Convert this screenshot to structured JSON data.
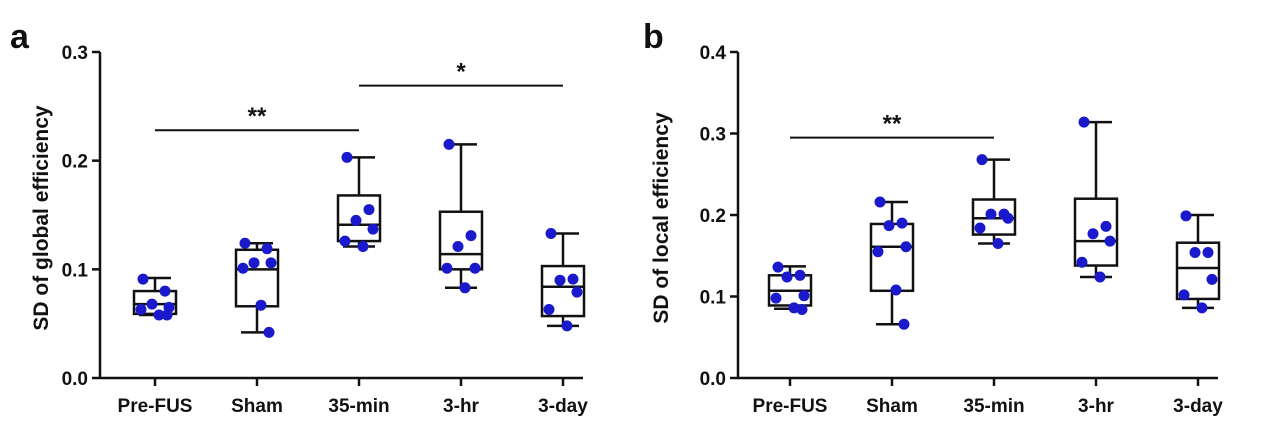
{
  "chart_data": [
    {
      "panel": "a",
      "type": "box",
      "title": "",
      "xlabel": "",
      "ylabel": "SD of global efficiency",
      "ylim": [
        0,
        0.3
      ],
      "yticks": [
        "0.0",
        "0.1",
        "0.2",
        "0.3"
      ],
      "categories": [
        "Pre-FUS",
        "Sham",
        "35-min",
        "3-hr",
        "3-day"
      ],
      "boxes": [
        {
          "min": 0.058,
          "q1": 0.059,
          "median": 0.068,
          "q3": 0.08,
          "max": 0.092
        },
        {
          "min": 0.042,
          "q1": 0.066,
          "median": 0.1,
          "q3": 0.118,
          "max": 0.124
        },
        {
          "min": 0.121,
          "q1": 0.126,
          "median": 0.141,
          "q3": 0.168,
          "max": 0.203
        },
        {
          "min": 0.083,
          "q1": 0.1,
          "median": 0.114,
          "q3": 0.153,
          "max": 0.215
        },
        {
          "min": 0.048,
          "q1": 0.057,
          "median": 0.084,
          "q3": 0.103,
          "max": 0.133
        }
      ],
      "points": [
        [
          0.091,
          0.08,
          0.068,
          0.065,
          0.063,
          0.058,
          0.058
        ],
        [
          0.124,
          0.119,
          0.106,
          0.106,
          0.101,
          0.067,
          0.042
        ],
        [
          0.203,
          0.155,
          0.145,
          0.137,
          0.126,
          0.121
        ],
        [
          0.215,
          0.131,
          0.121,
          0.101,
          0.101,
          0.083
        ],
        [
          0.133,
          0.091,
          0.09,
          0.079,
          0.063,
          0.048
        ]
      ],
      "significance": [
        {
          "from": "Pre-FUS",
          "to": "35-min",
          "label": "**",
          "y": 0.228
        },
        {
          "from": "35-min",
          "to": "3-day",
          "label": "*",
          "y": 0.269
        }
      ]
    },
    {
      "panel": "b",
      "type": "box",
      "title": "",
      "xlabel": "",
      "ylabel": "SD of local efficiency",
      "ylim": [
        0,
        0.4
      ],
      "yticks": [
        "0.0",
        "0.1",
        "0.2",
        "0.3",
        "0.4"
      ],
      "categories": [
        "Pre-FUS",
        "Sham",
        "35-min",
        "3-hr",
        "3-day"
      ],
      "boxes": [
        {
          "min": 0.085,
          "q1": 0.089,
          "median": 0.107,
          "q3": 0.126,
          "max": 0.137
        },
        {
          "min": 0.066,
          "q1": 0.107,
          "median": 0.161,
          "q3": 0.189,
          "max": 0.216
        },
        {
          "min": 0.165,
          "q1": 0.176,
          "median": 0.196,
          "q3": 0.219,
          "max": 0.268
        },
        {
          "min": 0.124,
          "q1": 0.138,
          "median": 0.168,
          "q3": 0.22,
          "max": 0.314
        },
        {
          "min": 0.086,
          "q1": 0.097,
          "median": 0.135,
          "q3": 0.166,
          "max": 0.2
        }
      ],
      "points": [
        [
          0.136,
          0.126,
          0.124,
          0.101,
          0.098,
          0.086,
          0.084
        ],
        [
          0.216,
          0.19,
          0.187,
          0.161,
          0.155,
          0.108,
          0.066
        ],
        [
          0.268,
          0.201,
          0.201,
          0.196,
          0.184,
          0.165
        ],
        [
          0.314,
          0.186,
          0.177,
          0.168,
          0.142,
          0.124
        ],
        [
          0.199,
          0.154,
          0.154,
          0.121,
          0.102,
          0.086
        ]
      ],
      "significance": [
        {
          "from": "Pre-FUS",
          "to": "35-min",
          "label": "**",
          "y": 0.295
        }
      ]
    }
  ],
  "colors": {
    "axis": "#111111",
    "box": "#111111",
    "point": "#1a1acc"
  }
}
